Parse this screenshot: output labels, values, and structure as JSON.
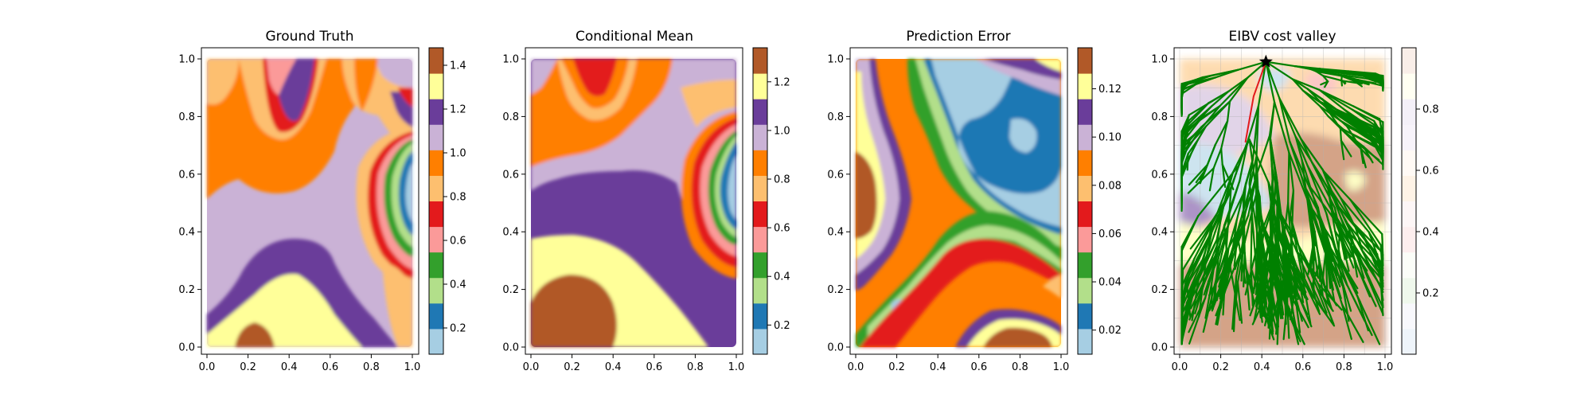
{
  "chart_data": [
    {
      "type": "heatmap",
      "title": "Ground Truth",
      "xlim": [
        0.0,
        1.0
      ],
      "ylim": [
        0.0,
        1.0
      ],
      "xticks": [
        "0.0",
        "0.2",
        "0.4",
        "0.6",
        "0.8",
        "1.0"
      ],
      "yticks": [
        "0.0",
        "0.2",
        "0.4",
        "0.6",
        "0.8",
        "1.0"
      ],
      "colorbar": {
        "range": [
          0.08,
          1.48
        ],
        "ticks": [
          "0.2",
          "0.4",
          "0.6",
          "0.8",
          "1.0",
          "1.2",
          "1.4"
        ],
        "tick_values": [
          0.2,
          0.4,
          0.6,
          0.8,
          1.0,
          1.2,
          1.4
        ]
      },
      "colormap": "Paired"
    },
    {
      "type": "heatmap",
      "title": "Conditional Mean",
      "xlim": [
        0.0,
        1.0
      ],
      "ylim": [
        0.0,
        1.0
      ],
      "xticks": [
        "0.0",
        "0.2",
        "0.4",
        "0.6",
        "0.8",
        "1.0"
      ],
      "yticks": [
        "0.0",
        "0.2",
        "0.4",
        "0.6",
        "0.8",
        "1.0"
      ],
      "colorbar": {
        "range": [
          0.08,
          1.34
        ],
        "ticks": [
          "0.2",
          "0.4",
          "0.6",
          "0.8",
          "1.0",
          "1.2"
        ],
        "tick_values": [
          0.2,
          0.4,
          0.6,
          0.8,
          1.0,
          1.2
        ]
      },
      "colormap": "Paired"
    },
    {
      "type": "heatmap",
      "title": "Prediction Error",
      "xlim": [
        0.0,
        1.0
      ],
      "ylim": [
        0.0,
        1.0
      ],
      "xticks": [
        "0.0",
        "0.2",
        "0.4",
        "0.6",
        "0.8",
        "1.0"
      ],
      "yticks": [
        "0.0",
        "0.2",
        "0.4",
        "0.6",
        "0.8",
        "1.0"
      ],
      "colorbar": {
        "range": [
          0.01,
          0.137
        ],
        "ticks": [
          "0.02",
          "0.04",
          "0.06",
          "0.08",
          "0.10",
          "0.12"
        ],
        "tick_values": [
          0.02,
          0.04,
          0.06,
          0.08,
          0.1,
          0.12
        ]
      },
      "colormap": "Paired"
    },
    {
      "type": "scatter",
      "title": "EIBV cost valley",
      "xlim": [
        0.0,
        1.0
      ],
      "ylim": [
        0.0,
        1.0
      ],
      "xticks": [
        "0.0",
        "0.2",
        "0.4",
        "0.6",
        "0.8",
        "1.0"
      ],
      "yticks": [
        "0.0",
        "0.2",
        "0.4",
        "0.6",
        "0.8",
        "1.0"
      ],
      "colorbar": {
        "range": [
          0.0,
          1.0
        ],
        "ticks": [
          "0.2",
          "0.4",
          "0.6",
          "0.8"
        ],
        "tick_values": [
          0.2,
          0.4,
          0.6,
          0.8
        ]
      },
      "colormap": "Paired (pale)",
      "grid": true,
      "marker": {
        "shape": "star",
        "x": 0.42,
        "y": 0.99,
        "color": "#000000"
      },
      "selected_path": {
        "color": "#e31a1c",
        "points": [
          [
            0.42,
            0.99
          ],
          [
            0.36,
            0.87
          ],
          [
            0.32,
            0.71
          ]
        ]
      },
      "tree_color": "#008000"
    }
  ],
  "palette": [
    "#a6cee3",
    "#1f78b4",
    "#b2df8a",
    "#33a02c",
    "#fb9a99",
    "#e31a1c",
    "#fdbf6f",
    "#ff7f00",
    "#cab2d6",
    "#6a3d9a",
    "#ffff99",
    "#b15928"
  ]
}
